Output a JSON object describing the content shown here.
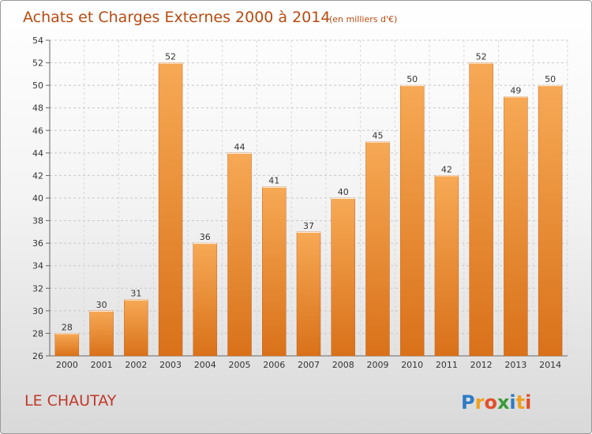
{
  "chart_data": {
    "type": "bar",
    "title": "Achats et Charges Externes 2000 à 2014",
    "subtitle": "(en milliers d'€)",
    "categories": [
      "2000",
      "2001",
      "2002",
      "2003",
      "2004",
      "2005",
      "2006",
      "2007",
      "2008",
      "2009",
      "2010",
      "2011",
      "2012",
      "2013",
      "2014"
    ],
    "values": [
      28,
      30,
      31,
      52,
      36,
      44,
      41,
      37,
      40,
      45,
      50,
      42,
      52,
      49,
      50
    ],
    "ylim": [
      26,
      54
    ],
    "yticks": [
      26,
      28,
      30,
      32,
      34,
      36,
      38,
      40,
      42,
      44,
      46,
      48,
      50,
      52,
      54
    ],
    "grid": true,
    "bar_color": "#f29a3c",
    "bar_color_dark": "#d9711a"
  },
  "footer": {
    "place": "LE CHAUTAY",
    "logo_letters": [
      "P",
      "r",
      "o",
      "x",
      "i",
      "t",
      "i"
    ],
    "logo_colors": [
      "#2e7bc4",
      "#f0a020",
      "#e0502a",
      "#3a9a3a",
      "#2e7bc4",
      "#f0a020",
      "#e0502a"
    ]
  }
}
